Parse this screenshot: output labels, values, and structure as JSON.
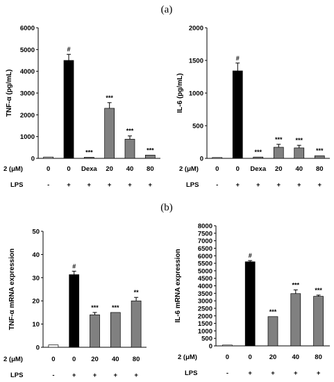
{
  "panels": [
    {
      "id": "a",
      "label": "(a)"
    },
    {
      "id": "b",
      "label": "(b)"
    }
  ],
  "chart_data": [
    {
      "type": "bar",
      "panel": "a",
      "ylabel": "TNF-α (pg/mL)",
      "ylim": [
        0,
        6000
      ],
      "yticks": [
        "0",
        "1000",
        "2000",
        "3000",
        "4000",
        "5000",
        "6000"
      ],
      "row_labels": [
        "2 (μM)",
        "LPS"
      ],
      "compound_row": [
        "0",
        "0",
        "Dexa",
        "20",
        "40",
        "80"
      ],
      "lps_row": [
        "-",
        "+",
        "+",
        "+",
        "+",
        "+"
      ],
      "values": [
        60,
        4500,
        50,
        2300,
        880,
        150
      ],
      "errors": [
        0,
        280,
        0,
        260,
        150,
        0
      ],
      "colors": [
        "#bdbdbd",
        "#000000",
        "#808080",
        "#808080",
        "#808080",
        "#808080"
      ],
      "significance": [
        "",
        "#",
        "***",
        "***",
        "***",
        "***"
      ]
    },
    {
      "type": "bar",
      "panel": "a",
      "ylabel": "IL-6 (pg/mL)",
      "ylim": [
        0,
        2000
      ],
      "yticks": [
        "0",
        "500",
        "1000",
        "1500",
        "2000"
      ],
      "row_labels": [
        "2 (μM)",
        "LPS"
      ],
      "compound_row": [
        "0",
        "0",
        "Dexa",
        "20",
        "40",
        "80"
      ],
      "lps_row": [
        "-",
        "+",
        "+",
        "+",
        "+",
        "+"
      ],
      "values": [
        10,
        1340,
        20,
        170,
        160,
        40
      ],
      "errors": [
        0,
        120,
        0,
        45,
        40,
        0
      ],
      "colors": [
        "#bdbdbd",
        "#000000",
        "#808080",
        "#808080",
        "#808080",
        "#808080"
      ],
      "significance": [
        "",
        "#",
        "***",
        "***",
        "***",
        "***"
      ]
    },
    {
      "type": "bar",
      "panel": "b",
      "ylabel": "TNF-α mRNA expression",
      "ylim": [
        0,
        50
      ],
      "yticks": [
        "0",
        "10",
        "20",
        "30",
        "40",
        "50"
      ],
      "row_labels": [
        "2 (μM)",
        "LPS"
      ],
      "compound_row": [
        "0",
        "0",
        "20",
        "40",
        "80"
      ],
      "lps_row": [
        "-",
        "+",
        "+",
        "+",
        "+"
      ],
      "values": [
        1,
        31.3,
        14,
        15,
        20
      ],
      "errors": [
        0,
        1.5,
        1,
        0,
        1.5
      ],
      "colors": [
        "#ffffff",
        "#000000",
        "#808080",
        "#808080",
        "#808080"
      ],
      "significance": [
        "",
        "#",
        "***",
        "***",
        "**"
      ]
    },
    {
      "type": "bar",
      "panel": "b",
      "ylabel": "IL-6 mRNA expression",
      "ylim": [
        0,
        8000
      ],
      "yticks": [
        "0",
        "500",
        "1000",
        "1500",
        "2000",
        "2500",
        "3000",
        "3500",
        "4000",
        "4500",
        "5000",
        "5500",
        "6000",
        "6500",
        "7000",
        "7500",
        "8000"
      ],
      "row_labels": [
        "2 (μM)",
        "LPS"
      ],
      "compound_row": [
        "0",
        "0",
        "20",
        "40",
        "80"
      ],
      "lps_row": [
        "-",
        "+",
        "+",
        "+",
        "+"
      ],
      "values": [
        0,
        5600,
        1950,
        3480,
        3300
      ],
      "errors": [
        0,
        80,
        0,
        250,
        80
      ],
      "colors": [
        "#ffffff",
        "#000000",
        "#808080",
        "#808080",
        "#808080"
      ],
      "significance": [
        "",
        "#",
        "***",
        "***",
        "***"
      ]
    }
  ]
}
